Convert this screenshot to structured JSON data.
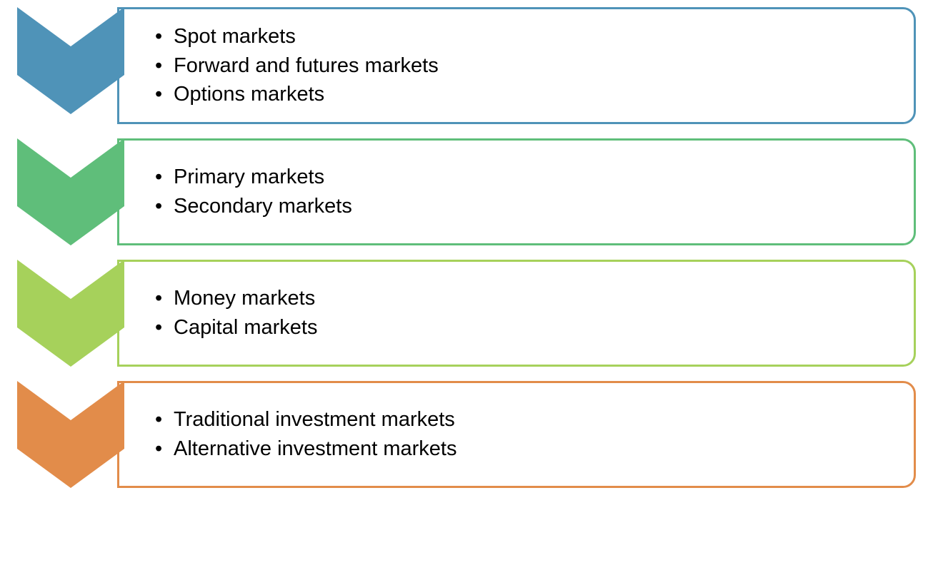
{
  "diagram": {
    "type": "chevron-list",
    "background_color": "#ffffff",
    "text_color": "#000000",
    "item_fontsize": 29,
    "chevron_width": 150,
    "chevron_body_height": 95,
    "chevron_point_height": 55,
    "box_border_width": 3,
    "box_border_radius": 18,
    "rows": [
      {
        "color": "#4f93b8",
        "items": [
          "Spot markets",
          "Forward and futures markets",
          "Options markets"
        ]
      },
      {
        "color": "#5fbe7a",
        "items": [
          "Primary markets",
          "Secondary markets"
        ]
      },
      {
        "color": "#a6d15b",
        "items": [
          "Money markets",
          "Capital markets"
        ]
      },
      {
        "color": "#e28c4a",
        "items": [
          "Traditional investment markets",
          "Alternative investment markets"
        ]
      }
    ]
  }
}
